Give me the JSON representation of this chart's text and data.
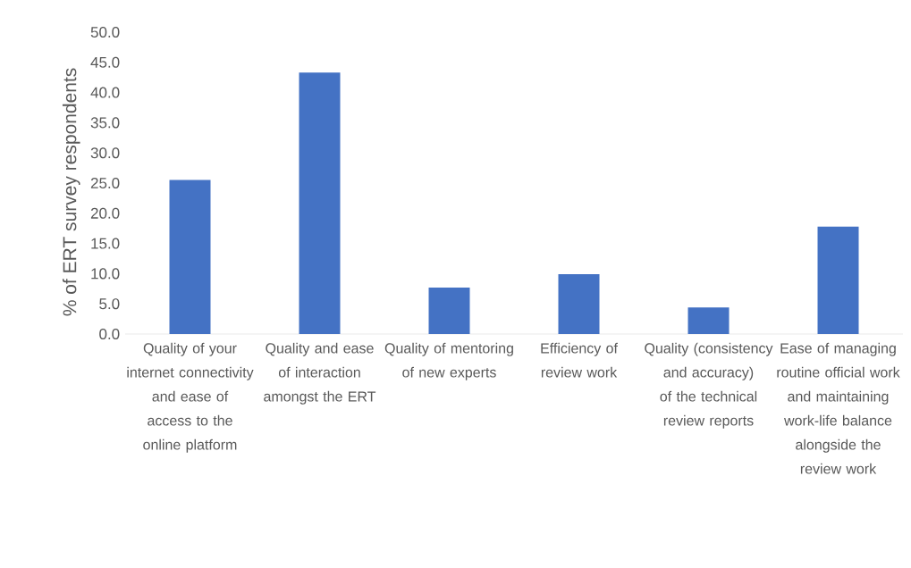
{
  "chart_data": {
    "type": "bar",
    "ylabel": "% of ERT survey respondents",
    "categories": [
      "Quality of your internet connectivity and ease of access to the online platform",
      "Quality and ease of interaction amongst the ERT",
      "Quality of mentoring of new experts",
      "Efficiency of review work",
      "Quality (consistency and accuracy) of the technical review reports",
      "Ease of managing routine official work and maintaining work-life balance alongside the review work"
    ],
    "values": [
      25.5,
      43.3,
      7.7,
      9.9,
      4.4,
      17.8
    ],
    "color": "#4472c4",
    "ylim": [
      0,
      50
    ],
    "yticks": [
      {
        "value": 0,
        "label": "0.0"
      },
      {
        "value": 5,
        "label": "5.0"
      },
      {
        "value": 10,
        "label": "10.0"
      },
      {
        "value": 15,
        "label": "15.0"
      },
      {
        "value": 20,
        "label": "20.0"
      },
      {
        "value": 25,
        "label": "25.0"
      },
      {
        "value": 30,
        "label": "30.0"
      },
      {
        "value": 35,
        "label": "35.0"
      },
      {
        "value": 40,
        "label": "40.0"
      },
      {
        "value": 45,
        "label": "45.0"
      },
      {
        "value": 50,
        "label": "50.0"
      }
    ]
  }
}
